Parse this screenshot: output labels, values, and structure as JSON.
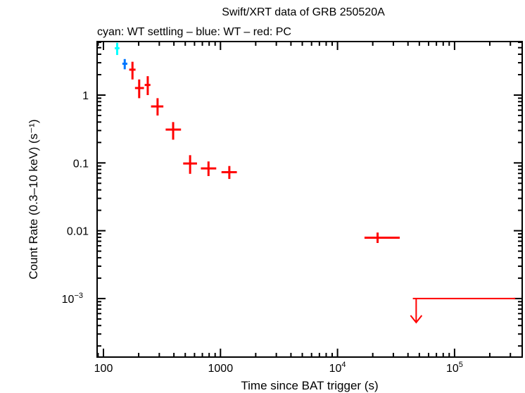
{
  "chart_data": {
    "type": "scatter",
    "title": "Swift/XRT data of GRB 250520A",
    "subtitle": "cyan: WT settling – blue: WT – red: PC",
    "xlabel": "Time since BAT trigger (s)",
    "ylabel": "Count Rate (0.3–10 keV) (s⁻¹)",
    "xscale": "log",
    "yscale": "log",
    "xlim": [
      88,
      420000
    ],
    "ylim": [
      0.00018,
      8
    ],
    "xticks": [
      {
        "v": 100,
        "label": "100"
      },
      {
        "v": 1000,
        "label": "1000"
      },
      {
        "v": 10000,
        "label": "10",
        "exp": "4"
      },
      {
        "v": 100000,
        "label": "10",
        "exp": "5"
      }
    ],
    "yticks": [
      {
        "v": 1,
        "label": "1"
      },
      {
        "v": 0.1,
        "label": "0.1"
      },
      {
        "v": 0.01,
        "label": "0.01"
      },
      {
        "v": 0.001,
        "label": "10",
        "exp": "−3"
      }
    ],
    "series": [
      {
        "name": "WT settling",
        "color": "#00ffff",
        "points": [
          {
            "x": 131,
            "xlo": 125,
            "xhi": 137,
            "y": 4.9,
            "ylo": 3.9,
            "yhi": 5.9
          }
        ]
      },
      {
        "name": "WT",
        "color": "#0077ff",
        "points": [
          {
            "x": 152,
            "xlo": 145,
            "xhi": 160,
            "y": 2.9,
            "ylo": 2.4,
            "yhi": 3.4
          }
        ]
      },
      {
        "name": "PC",
        "color": "#ff0000",
        "points": [
          {
            "x": 177,
            "xlo": 166,
            "xhi": 188,
            "y": 2.37,
            "ylo": 1.7,
            "yhi": 3.1
          },
          {
            "x": 202,
            "xlo": 186,
            "xhi": 222,
            "y": 1.27,
            "ylo": 0.9,
            "yhi": 1.7
          },
          {
            "x": 239,
            "xlo": 225,
            "xhi": 252,
            "y": 1.41,
            "ylo": 1.0,
            "yhi": 1.9
          },
          {
            "x": 290,
            "xlo": 255,
            "xhi": 325,
            "y": 0.68,
            "ylo": 0.5,
            "yhi": 0.9
          },
          {
            "x": 394,
            "xlo": 340,
            "xhi": 460,
            "y": 0.31,
            "ylo": 0.22,
            "yhi": 0.4
          },
          {
            "x": 550,
            "xlo": 480,
            "xhi": 630,
            "y": 0.098,
            "ylo": 0.069,
            "yhi": 0.13
          },
          {
            "x": 790,
            "xlo": 680,
            "xhi": 920,
            "y": 0.083,
            "ylo": 0.064,
            "yhi": 0.105
          },
          {
            "x": 1190,
            "xlo": 1020,
            "xhi": 1380,
            "y": 0.073,
            "ylo": 0.058,
            "yhi": 0.09
          },
          {
            "x": 22000,
            "xlo": 17000,
            "xhi": 34000,
            "y": 0.0079,
            "ylo": 0.0066,
            "yhi": 0.0094
          }
        ]
      },
      {
        "name": "PC upper limit",
        "color": "#ff0000",
        "upper_limit": true,
        "points": [
          {
            "x": 47000,
            "xlo": 44000,
            "xhi": 330000,
            "y": 0.001
          }
        ]
      }
    ]
  }
}
